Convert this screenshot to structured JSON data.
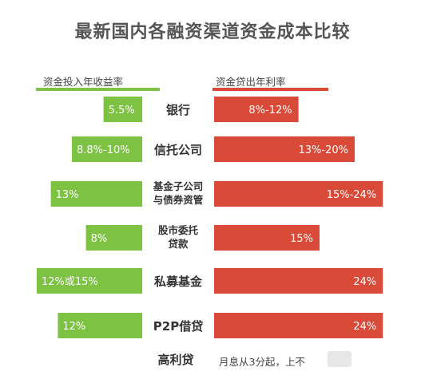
{
  "title": "最新国内各融资渠道资金成本比较",
  "headers": {
    "left": "资金投入年收益率",
    "right": "资金贷出年利率"
  },
  "colors": {
    "green": "#7dc242",
    "red": "#d94a38"
  },
  "chart_data": {
    "type": "bar",
    "categories": [
      [
        "银行"
      ],
      [
        "信托公司"
      ],
      [
        "基金子公司",
        "与债券资管"
      ],
      [
        "股市委托",
        "贷款"
      ],
      [
        "私募基金"
      ],
      [
        "P2P借贷"
      ]
    ],
    "series": [
      {
        "name": "资金投入年收益率",
        "labels": [
          "5.5%",
          "8.8%-10%",
          "13%",
          "8%",
          "12%或15%",
          "12%"
        ],
        "values": [
          5.5,
          10,
          13,
          8,
          15,
          12
        ]
      },
      {
        "name": "资金贷出年利率",
        "labels": [
          "8%-12%",
          "13%-20%",
          "15%-24%",
          "15%",
          "24%",
          "24%"
        ],
        "values": [
          12,
          20,
          24,
          15,
          24,
          24
        ]
      }
    ],
    "footer": {
      "label": "高利贷",
      "note": "月息从3分起，上不"
    }
  }
}
